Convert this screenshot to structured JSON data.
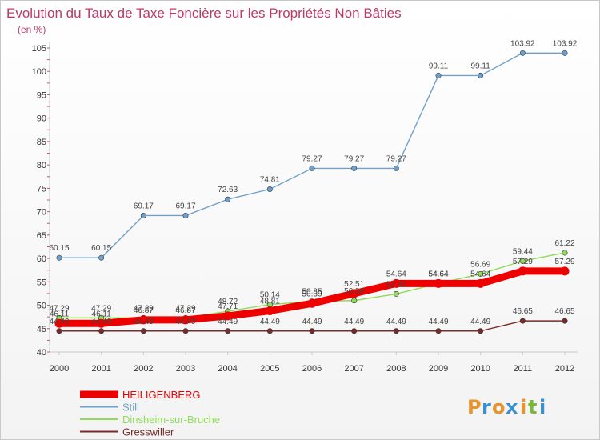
{
  "chart_data": {
    "type": "line",
    "title": "Evolution du Taux de Taxe Foncière sur les Propriétés Non Bâties",
    "subtitle": "(en %)",
    "categories": [
      "2000",
      "2001",
      "2002",
      "2003",
      "2004",
      "2005",
      "2006",
      "2007",
      "2008",
      "2009",
      "2010",
      "2011",
      "2012"
    ],
    "ylim": [
      40,
      105
    ],
    "yticks": [
      40,
      45,
      50,
      55,
      60,
      65,
      70,
      75,
      80,
      85,
      90,
      95,
      100,
      105
    ],
    "series": [
      {
        "name": "Gresswiller",
        "color": "#7a2a2a",
        "values": [
          44.49,
          44.49,
          44.49,
          44.49,
          44.49,
          44.49,
          44.49,
          44.49,
          44.49,
          44.49,
          44.49,
          46.65,
          46.65
        ]
      },
      {
        "name": "Dinsheim-sur-Bruche",
        "color": "#8fdc5a",
        "values": [
          47.29,
          47.29,
          47.29,
          47.29,
          48.72,
          50.14,
          50.85,
          50.99,
          52.42,
          54.64,
          56.69,
          59.44,
          61.22
        ]
      },
      {
        "name": "Still",
        "color": "#6fa0cc",
        "values": [
          60.15,
          60.15,
          69.17,
          69.17,
          72.63,
          74.81,
          79.27,
          79.27,
          79.27,
          99.11,
          99.11,
          103.92,
          103.92
        ]
      },
      {
        "name": "HEILIGENBERG",
        "color": "#ee0000",
        "values": [
          46.11,
          46.11,
          46.87,
          46.87,
          47.71,
          48.81,
          50.39,
          52.51,
          54.64,
          54.64,
          54.64,
          57.29,
          57.29
        ]
      }
    ],
    "legend": [
      "HEILIGENBERG",
      "Still",
      "Dinsheim-sur-Bruche",
      "Gresswiller"
    ],
    "legend_colors": [
      "#ee0000",
      "#6fa0cc",
      "#8fdc5a",
      "#7a2a2a"
    ],
    "grid": false,
    "legend_position": "bottom-left"
  },
  "brand": {
    "letters": [
      "P",
      "r",
      "o",
      "x",
      "i",
      "t",
      "i"
    ],
    "colors": [
      "#e8932b",
      "#3a8fd0",
      "#e8932b",
      "#3a8fd0",
      "#e8932b",
      "#7ab83a",
      "#3a8fd0"
    ]
  }
}
